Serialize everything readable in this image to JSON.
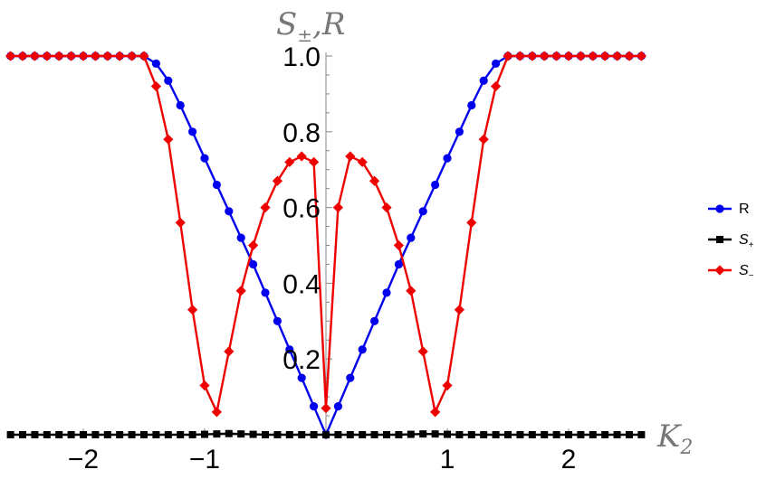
{
  "chart_data": {
    "type": "line",
    "xlabel": "K",
    "xlabel_sub": "2",
    "ylabel": "S",
    "ylabel_sub": "±",
    "ylabel_rest": ",R",
    "xlim": [
      -2.6,
      2.6
    ],
    "ylim": [
      0,
      1.0
    ],
    "x_ticks": [
      -2,
      -1,
      1,
      2
    ],
    "x_tick_labels": [
      "−2",
      "−1",
      "1",
      "2"
    ],
    "y_ticks": [
      0.2,
      0.4,
      0.6,
      0.8,
      1.0
    ],
    "y_tick_labels": [
      "0.2",
      "0.4",
      "0.6",
      "0.8",
      "1.0"
    ],
    "grid": false,
    "legend_position": "right",
    "series": [
      {
        "name": "R",
        "color": "#0000ee",
        "marker": "circle",
        "x": [
          -2.6,
          -2.5,
          -2.4,
          -2.3,
          -2.2,
          -2.1,
          -2.0,
          -1.9,
          -1.8,
          -1.7,
          -1.6,
          -1.5,
          -1.4,
          -1.3,
          -1.2,
          -1.1,
          -1.0,
          -0.9,
          -0.8,
          -0.7,
          -0.6,
          -0.5,
          -0.4,
          -0.3,
          -0.2,
          -0.1,
          0.0,
          0.1,
          0.2,
          0.3,
          0.4,
          0.5,
          0.6,
          0.7,
          0.8,
          0.9,
          1.0,
          1.1,
          1.2,
          1.3,
          1.4,
          1.5,
          1.6,
          1.7,
          1.8,
          1.9,
          2.0,
          2.1,
          2.2,
          2.3,
          2.4,
          2.5,
          2.6
        ],
        "y": [
          1.0,
          1.0,
          1.0,
          1.0,
          1.0,
          1.0,
          1.0,
          1.0,
          1.0,
          1.0,
          1.0,
          1.0,
          0.98,
          0.935,
          0.87,
          0.8,
          0.73,
          0.66,
          0.59,
          0.52,
          0.45,
          0.375,
          0.3,
          0.225,
          0.15,
          0.075,
          0.0,
          0.075,
          0.15,
          0.225,
          0.3,
          0.375,
          0.45,
          0.52,
          0.59,
          0.66,
          0.73,
          0.8,
          0.87,
          0.935,
          0.98,
          1.0,
          1.0,
          1.0,
          1.0,
          1.0,
          1.0,
          1.0,
          1.0,
          1.0,
          1.0,
          1.0,
          1.0
        ]
      },
      {
        "name": "S",
        "name_sub": "+",
        "color": "#000000",
        "marker": "square",
        "x": [
          -2.6,
          -2.5,
          -2.4,
          -2.3,
          -2.2,
          -2.1,
          -2.0,
          -1.9,
          -1.8,
          -1.7,
          -1.6,
          -1.5,
          -1.4,
          -1.3,
          -1.2,
          -1.1,
          -1.0,
          -0.9,
          -0.8,
          -0.7,
          -0.6,
          -0.5,
          -0.4,
          -0.3,
          -0.2,
          -0.1,
          0.0,
          0.1,
          0.2,
          0.3,
          0.4,
          0.5,
          0.6,
          0.7,
          0.8,
          0.9,
          1.0,
          1.1,
          1.2,
          1.3,
          1.4,
          1.5,
          1.6,
          1.7,
          1.8,
          1.9,
          2.0,
          2.1,
          2.2,
          2.3,
          2.4,
          2.5,
          2.6
        ],
        "y": [
          0.0,
          0.0,
          0.0,
          0.0,
          0.0,
          0.0,
          0.0,
          0.0,
          0.0,
          0.0,
          0.0,
          0.0,
          0.0,
          0.0,
          0.0,
          0.0,
          0.001,
          0.002,
          0.003,
          0.002,
          0.001,
          0.0,
          0.0,
          0.0,
          0.0,
          0.0,
          0.0,
          0.0,
          0.0,
          0.0,
          0.0,
          0.0,
          0.0,
          0.001,
          0.002,
          0.002,
          0.001,
          0.0,
          0.0,
          0.0,
          0.0,
          0.0,
          0.0,
          0.0,
          0.0,
          0.0,
          0.0,
          0.0,
          0.0,
          0.0,
          0.0,
          0.0,
          0.0
        ]
      },
      {
        "name": "S",
        "name_sub": "−",
        "color": "#ee0000",
        "marker": "diamond",
        "x": [
          -2.6,
          -2.5,
          -2.4,
          -2.3,
          -2.2,
          -2.1,
          -2.0,
          -1.9,
          -1.8,
          -1.7,
          -1.6,
          -1.5,
          -1.4,
          -1.3,
          -1.2,
          -1.1,
          -1.0,
          -0.9,
          -0.8,
          -0.7,
          -0.6,
          -0.5,
          -0.4,
          -0.3,
          -0.2,
          -0.1,
          0.0,
          0.1,
          0.2,
          0.3,
          0.4,
          0.5,
          0.6,
          0.7,
          0.8,
          0.9,
          1.0,
          1.1,
          1.2,
          1.3,
          1.4,
          1.5,
          1.6,
          1.7,
          1.8,
          1.9,
          2.0,
          2.1,
          2.2,
          2.3,
          2.4,
          2.5,
          2.6
        ],
        "y": [
          1.0,
          1.0,
          1.0,
          1.0,
          1.0,
          1.0,
          1.0,
          1.0,
          1.0,
          1.0,
          1.0,
          1.0,
          0.92,
          0.78,
          0.56,
          0.33,
          0.13,
          0.06,
          0.22,
          0.38,
          0.5,
          0.6,
          0.67,
          0.72,
          0.735,
          0.72,
          0.07,
          0.6,
          0.735,
          0.72,
          0.67,
          0.6,
          0.5,
          0.38,
          0.22,
          0.06,
          0.13,
          0.33,
          0.56,
          0.78,
          0.92,
          1.0,
          1.0,
          1.0,
          1.0,
          1.0,
          1.0,
          1.0,
          1.0,
          1.0,
          1.0,
          1.0,
          1.0
        ]
      }
    ]
  }
}
